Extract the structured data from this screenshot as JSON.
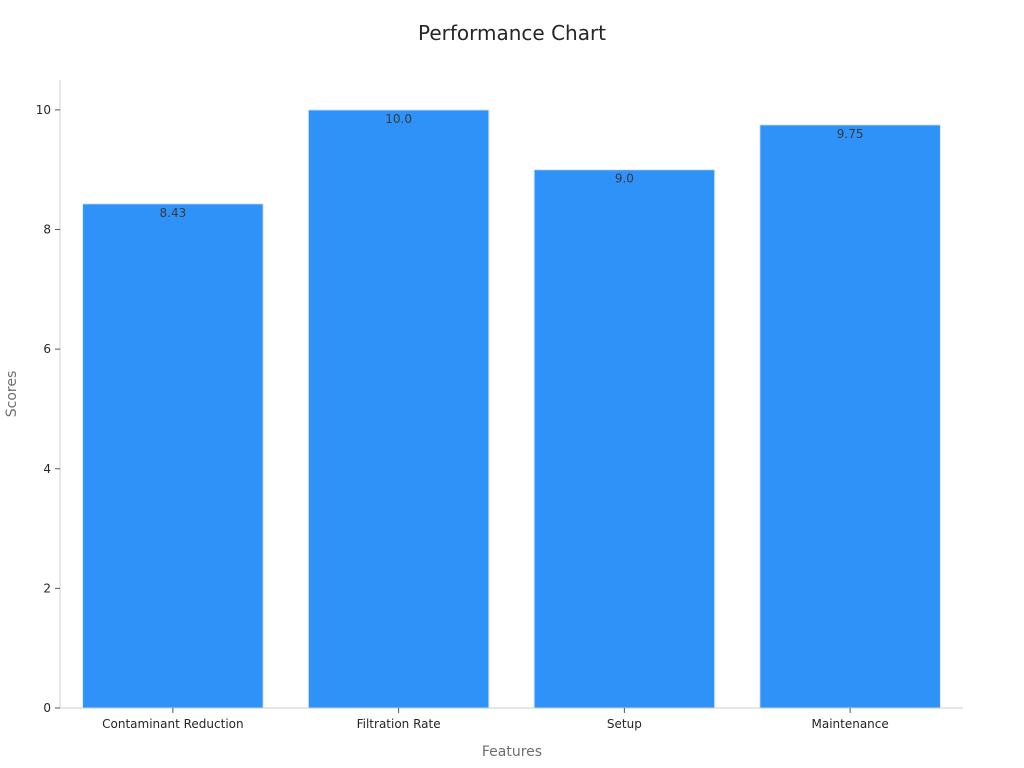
{
  "chart_data": {
    "type": "bar",
    "title": "Performance Chart",
    "xlabel": "Features",
    "ylabel": "Scores",
    "categories": [
      "Contaminant Reduction",
      "Filtration Rate",
      "Setup",
      "Maintenance"
    ],
    "values": [
      8.43,
      10.0,
      9.0,
      9.75
    ],
    "value_labels": [
      "8.43",
      "10.0",
      "9.0",
      "9.75"
    ],
    "ylim": [
      0,
      10.5
    ],
    "yticks": [
      0,
      2,
      4,
      6,
      8,
      10
    ],
    "ytick_labels": [
      "0",
      "2",
      "4",
      "6",
      "8",
      "10"
    ],
    "grid": false,
    "legend": "none",
    "bar_color": "#2f92f8",
    "bar_edge_color": "#d8e8fb"
  }
}
